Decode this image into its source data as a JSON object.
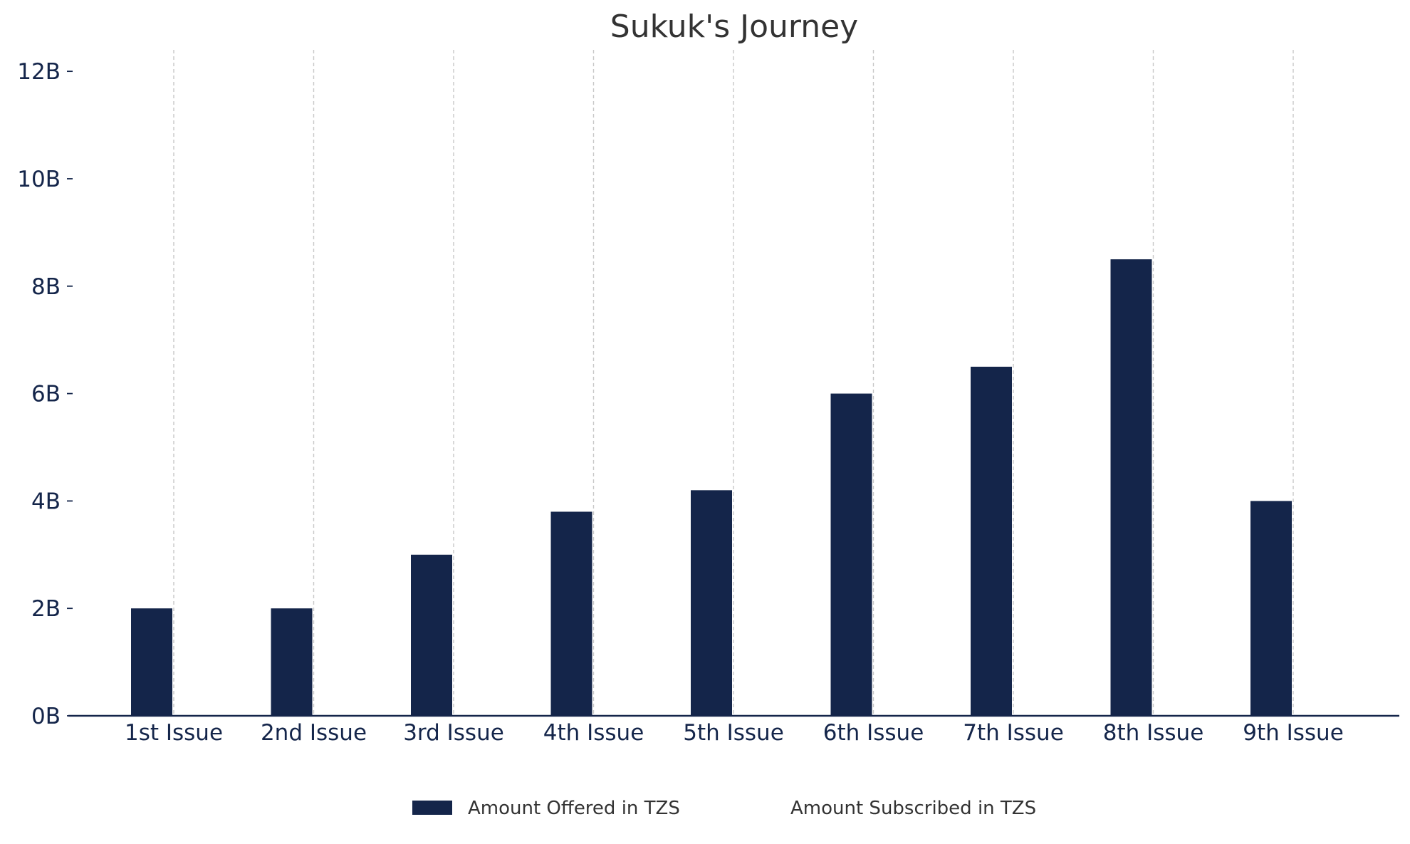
{
  "chart_data": {
    "type": "bar",
    "title": "Sukuk's Journey",
    "xlabel": "",
    "ylabel": "",
    "categories": [
      "1st Issue",
      "2nd Issue",
      "3rd Issue",
      "4th Issue",
      "5th Issue",
      "6th Issue",
      "7th Issue",
      "8th Issue",
      "9th Issue"
    ],
    "series": [
      {
        "name": "Amount Offered in TZS",
        "color": "#14254a",
        "values": [
          2000000000,
          2000000000,
          3000000000,
          3800000000,
          4200000000,
          6000000000,
          6500000000,
          8500000000,
          4000000000
        ]
      },
      {
        "name": "Amount Subscribed in TZS",
        "color": "#ffffff",
        "values": [
          0,
          0,
          0,
          0,
          0,
          0,
          0,
          0,
          0
        ]
      }
    ],
    "ylim": [
      0,
      12400000000
    ],
    "yticks": [
      0,
      2000000000,
      4000000000,
      6000000000,
      8000000000,
      10000000000,
      12000000000
    ],
    "ytick_labels": [
      "0B",
      "2B",
      "4B",
      "6B",
      "8B",
      "10B",
      "12B"
    ],
    "grid": "vertical dashed",
    "legend_position": "bottom-center"
  }
}
